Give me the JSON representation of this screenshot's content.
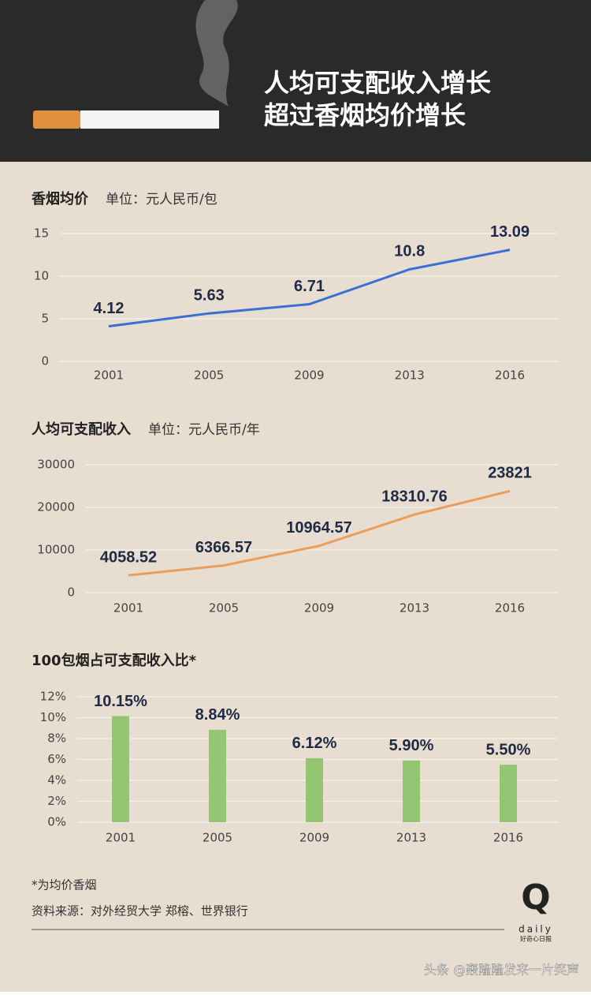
{
  "header": {
    "title_lines": [
      "人均可支配收入增长",
      "超过香烟均价增长"
    ]
  },
  "chart_data": [
    {
      "type": "line",
      "title": "香烟均价",
      "subtitle": "单位：元人民币/包",
      "categories": [
        "2001",
        "2005",
        "2009",
        "2013",
        "2016"
      ],
      "values": [
        4.12,
        5.63,
        6.71,
        10.8,
        13.09
      ],
      "color": "#3b6fd4",
      "ylim": [
        0,
        15
      ],
      "yticks": [
        0,
        5,
        10,
        15
      ],
      "grid": true
    },
    {
      "type": "line",
      "title": "人均可支配收入",
      "subtitle": "单位：元人民币/年",
      "categories": [
        "2001",
        "2005",
        "2009",
        "2013",
        "2016"
      ],
      "values": [
        4058.52,
        6366.57,
        10964.57,
        18310.76,
        23821
      ],
      "color": "#eb9e5c",
      "ylim": [
        0,
        30000
      ],
      "yticks": [
        0,
        10000,
        20000,
        30000
      ],
      "grid": true
    },
    {
      "type": "bar",
      "title": "100包烟占可支配收入比*",
      "categories": [
        "2001",
        "2005",
        "2009",
        "2013",
        "2016"
      ],
      "values": [
        10.15,
        8.84,
        6.12,
        5.9,
        5.5
      ],
      "value_labels": [
        "10.15%",
        "8.84%",
        "6.12%",
        "5.90%",
        "5.50%"
      ],
      "color": "#93c572",
      "ylim": [
        0,
        12
      ],
      "yticks": [
        {
          "value": 0,
          "label": "0%"
        },
        {
          "value": 2,
          "label": "2%"
        },
        {
          "value": 4,
          "label": "4%"
        },
        {
          "value": 6,
          "label": "6%"
        },
        {
          "value": 8,
          "label": "8%"
        },
        {
          "value": 10,
          "label": "10%"
        },
        {
          "value": 12,
          "label": "12%"
        }
      ],
      "grid": true
    }
  ],
  "footer": {
    "note": "*为均价香烟",
    "source": "资料来源：对外经贸大学 郑榕、世界银行",
    "logo": "Q",
    "logo_word": "daily",
    "logo_name": "好奇心日报",
    "watermark": "头条 @轰隆隆发来一片笑声"
  }
}
